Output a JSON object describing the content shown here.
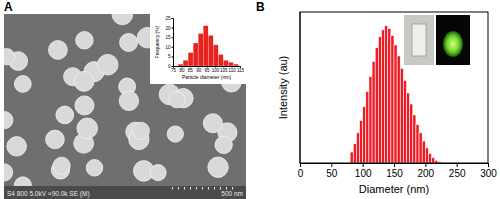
{
  "chart_data": [
    {
      "type": "histogram",
      "title": "A",
      "xlabel": "Particle diameter (nm)",
      "ylabel": "Frequency (%)",
      "bins": [
        78,
        81,
        84,
        87,
        90,
        93,
        96,
        99,
        102,
        105,
        108,
        111,
        114
      ],
      "values": [
        1,
        3,
        7,
        12,
        17,
        21,
        16,
        11,
        6,
        3,
        2,
        1
      ],
      "color": "#e8231f",
      "xlim": [
        75,
        115
      ],
      "xticks": [
        75,
        80,
        85,
        90,
        95,
        100,
        105,
        110,
        115
      ],
      "ylim": [
        0,
        25
      ],
      "yticks": [
        0,
        5,
        10,
        15,
        20,
        25
      ],
      "annotations": [
        "S4 800 5.0kV ×90.0k SE (M)",
        "500 nm"
      ]
    },
    {
      "type": "histogram",
      "title": "B",
      "xlabel": "Diameter (nm)",
      "ylabel": "Intensity (au)",
      "bins": [
        80,
        85,
        90,
        95,
        100,
        105,
        110,
        115,
        120,
        125,
        130,
        135,
        140,
        145,
        150,
        155,
        160,
        165,
        170,
        175,
        180,
        185,
        190,
        195,
        200,
        205,
        210,
        215,
        220,
        225
      ],
      "values": [
        8,
        14,
        22,
        31,
        41,
        52,
        63,
        74,
        84,
        92,
        97,
        100,
        98,
        93,
        86,
        78,
        69,
        60,
        51,
        43,
        35,
        28,
        22,
        16,
        11,
        7,
        4,
        2,
        1
      ],
      "color": "#ee1c25",
      "xlim": [
        0,
        300
      ],
      "xticks": [
        0,
        50,
        100,
        150,
        200,
        250,
        300
      ],
      "ylim": [
        0,
        110
      ],
      "tick_labels": "x"
    }
  ]
}
